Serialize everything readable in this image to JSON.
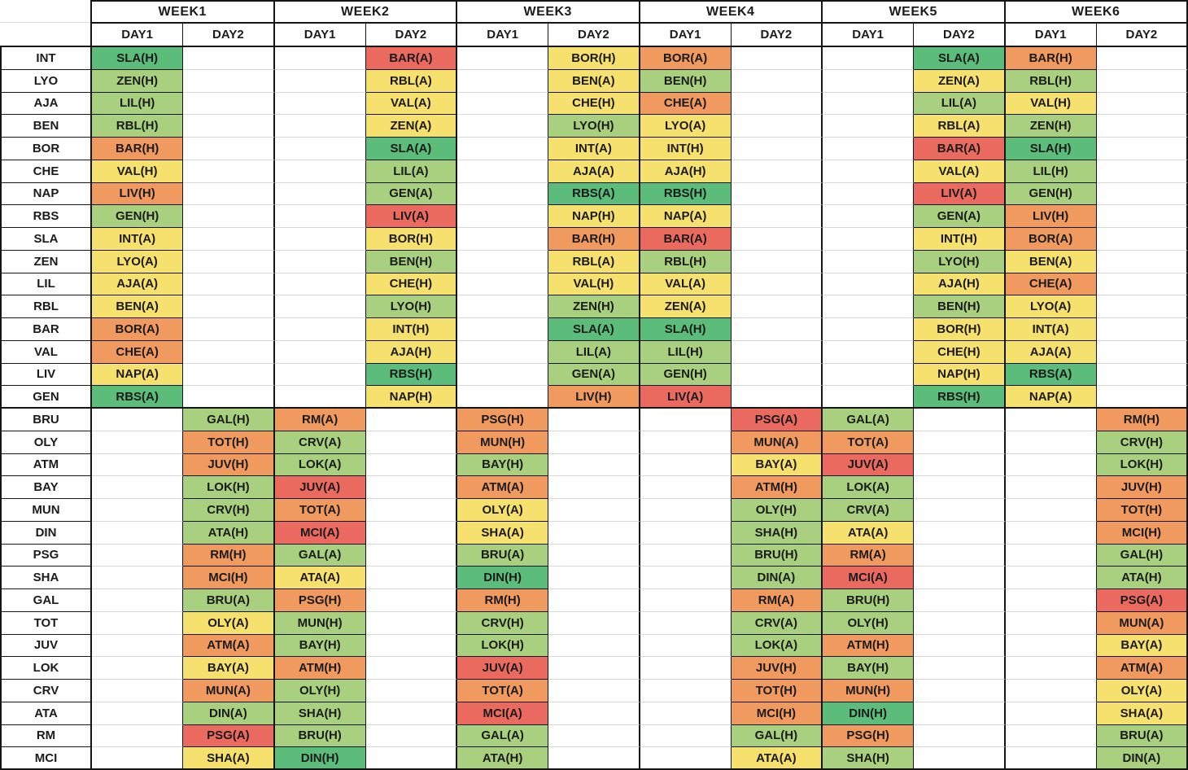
{
  "table_title": "fixture-difficulty-schedule",
  "palette": {
    "border_dark": "#151515",
    "grid_light": "#d8d8d8",
    "text": "#1b1b1b",
    "levels": {
      "g": "#5cbd7b",
      "lg": "#a9d07e",
      "y": "#f7e16e",
      "o": "#f19a60",
      "r": "#eb6a60"
    },
    "level_names": {
      "g": "green",
      "lg": "light-green",
      "y": "yellow",
      "o": "orange",
      "r": "red"
    }
  },
  "header": {
    "corner": "",
    "weeks": [
      {
        "label": "WEEK1",
        "days": [
          "DAY1",
          "DAY2"
        ]
      },
      {
        "label": "WEEK2",
        "days": [
          "DAY1",
          "DAY2"
        ]
      },
      {
        "label": "WEEK3",
        "days": [
          "DAY1",
          "DAY2"
        ]
      },
      {
        "label": "WEEK4",
        "days": [
          "DAY1",
          "DAY2"
        ]
      },
      {
        "label": "WEEK5",
        "days": [
          "DAY1",
          "DAY2"
        ]
      },
      {
        "label": "WEEK6",
        "days": [
          "DAY1",
          "DAY2"
        ]
      }
    ]
  },
  "column_keys": [
    "W1D1",
    "W1D2",
    "W2D1",
    "W2D2",
    "W3D1",
    "W3D2",
    "W4D1",
    "W4D2",
    "W5D1",
    "W5D2",
    "W6D1",
    "W6D2"
  ],
  "rows": [
    {
      "team": "INT",
      "cells": [
        {
          "t": "SLA(H)",
          "d": "g"
        },
        null,
        null,
        {
          "t": "BAR(A)",
          "d": "r"
        },
        null,
        {
          "t": "BOR(H)",
          "d": "y"
        },
        {
          "t": "BOR(A)",
          "d": "o"
        },
        null,
        null,
        {
          "t": "SLA(A)",
          "d": "g"
        },
        {
          "t": "BAR(H)",
          "d": "o"
        },
        null
      ]
    },
    {
      "team": "LYO",
      "cells": [
        {
          "t": "ZEN(H)",
          "d": "lg"
        },
        null,
        null,
        {
          "t": "RBL(A)",
          "d": "y"
        },
        null,
        {
          "t": "BEN(A)",
          "d": "y"
        },
        {
          "t": "BEN(H)",
          "d": "lg"
        },
        null,
        null,
        {
          "t": "ZEN(A)",
          "d": "y"
        },
        {
          "t": "RBL(H)",
          "d": "lg"
        },
        null
      ]
    },
    {
      "team": "AJA",
      "cells": [
        {
          "t": "LIL(H)",
          "d": "lg"
        },
        null,
        null,
        {
          "t": "VAL(A)",
          "d": "y"
        },
        null,
        {
          "t": "CHE(H)",
          "d": "y"
        },
        {
          "t": "CHE(A)",
          "d": "o"
        },
        null,
        null,
        {
          "t": "LIL(A)",
          "d": "lg"
        },
        {
          "t": "VAL(H)",
          "d": "y"
        },
        null
      ]
    },
    {
      "team": "BEN",
      "cells": [
        {
          "t": "RBL(H)",
          "d": "lg"
        },
        null,
        null,
        {
          "t": "ZEN(A)",
          "d": "y"
        },
        null,
        {
          "t": "LYO(H)",
          "d": "lg"
        },
        {
          "t": "LYO(A)",
          "d": "y"
        },
        null,
        null,
        {
          "t": "RBL(A)",
          "d": "y"
        },
        {
          "t": "ZEN(H)",
          "d": "lg"
        },
        null
      ]
    },
    {
      "team": "BOR",
      "cells": [
        {
          "t": "BAR(H)",
          "d": "o"
        },
        null,
        null,
        {
          "t": "SLA(A)",
          "d": "g"
        },
        null,
        {
          "t": "INT(A)",
          "d": "y"
        },
        {
          "t": "INT(H)",
          "d": "y"
        },
        null,
        null,
        {
          "t": "BAR(A)",
          "d": "r"
        },
        {
          "t": "SLA(H)",
          "d": "g"
        },
        null
      ]
    },
    {
      "team": "CHE",
      "cells": [
        {
          "t": "VAL(H)",
          "d": "y"
        },
        null,
        null,
        {
          "t": "LIL(A)",
          "d": "lg"
        },
        null,
        {
          "t": "AJA(A)",
          "d": "y"
        },
        {
          "t": "AJA(H)",
          "d": "y"
        },
        null,
        null,
        {
          "t": "VAL(A)",
          "d": "y"
        },
        {
          "t": "LIL(H)",
          "d": "lg"
        },
        null
      ]
    },
    {
      "team": "NAP",
      "cells": [
        {
          "t": "LIV(H)",
          "d": "o"
        },
        null,
        null,
        {
          "t": "GEN(A)",
          "d": "lg"
        },
        null,
        {
          "t": "RBS(A)",
          "d": "g"
        },
        {
          "t": "RBS(H)",
          "d": "g"
        },
        null,
        null,
        {
          "t": "LIV(A)",
          "d": "r"
        },
        {
          "t": "GEN(H)",
          "d": "lg"
        },
        null
      ]
    },
    {
      "team": "RBS",
      "cells": [
        {
          "t": "GEN(H)",
          "d": "lg"
        },
        null,
        null,
        {
          "t": "LIV(A)",
          "d": "r"
        },
        null,
        {
          "t": "NAP(H)",
          "d": "y"
        },
        {
          "t": "NAP(A)",
          "d": "y"
        },
        null,
        null,
        {
          "t": "GEN(A)",
          "d": "lg"
        },
        {
          "t": "LIV(H)",
          "d": "o"
        },
        null
      ]
    },
    {
      "team": "SLA",
      "cells": [
        {
          "t": "INT(A)",
          "d": "y"
        },
        null,
        null,
        {
          "t": "BOR(H)",
          "d": "y"
        },
        null,
        {
          "t": "BAR(H)",
          "d": "o"
        },
        {
          "t": "BAR(A)",
          "d": "r"
        },
        null,
        null,
        {
          "t": "INT(H)",
          "d": "y"
        },
        {
          "t": "BOR(A)",
          "d": "o"
        },
        null
      ]
    },
    {
      "team": "ZEN",
      "cells": [
        {
          "t": "LYO(A)",
          "d": "y"
        },
        null,
        null,
        {
          "t": "BEN(H)",
          "d": "lg"
        },
        null,
        {
          "t": "RBL(A)",
          "d": "y"
        },
        {
          "t": "RBL(H)",
          "d": "lg"
        },
        null,
        null,
        {
          "t": "LYO(H)",
          "d": "lg"
        },
        {
          "t": "BEN(A)",
          "d": "y"
        },
        null
      ]
    },
    {
      "team": "LIL",
      "cells": [
        {
          "t": "AJA(A)",
          "d": "y"
        },
        null,
        null,
        {
          "t": "CHE(H)",
          "d": "y"
        },
        null,
        {
          "t": "VAL(H)",
          "d": "y"
        },
        {
          "t": "VAL(A)",
          "d": "y"
        },
        null,
        null,
        {
          "t": "AJA(H)",
          "d": "y"
        },
        {
          "t": "CHE(A)",
          "d": "o"
        },
        null
      ]
    },
    {
      "team": "RBL",
      "cells": [
        {
          "t": "BEN(A)",
          "d": "y"
        },
        null,
        null,
        {
          "t": "LYO(H)",
          "d": "lg"
        },
        null,
        {
          "t": "ZEN(H)",
          "d": "lg"
        },
        {
          "t": "ZEN(A)",
          "d": "y"
        },
        null,
        null,
        {
          "t": "BEN(H)",
          "d": "lg"
        },
        {
          "t": "LYO(A)",
          "d": "y"
        },
        null
      ]
    },
    {
      "team": "BAR",
      "cells": [
        {
          "t": "BOR(A)",
          "d": "o"
        },
        null,
        null,
        {
          "t": "INT(H)",
          "d": "y"
        },
        null,
        {
          "t": "SLA(A)",
          "d": "g"
        },
        {
          "t": "SLA(H)",
          "d": "g"
        },
        null,
        null,
        {
          "t": "BOR(H)",
          "d": "y"
        },
        {
          "t": "INT(A)",
          "d": "y"
        },
        null
      ]
    },
    {
      "team": "VAL",
      "cells": [
        {
          "t": "CHE(A)",
          "d": "o"
        },
        null,
        null,
        {
          "t": "AJA(H)",
          "d": "y"
        },
        null,
        {
          "t": "LIL(A)",
          "d": "lg"
        },
        {
          "t": "LIL(H)",
          "d": "lg"
        },
        null,
        null,
        {
          "t": "CHE(H)",
          "d": "y"
        },
        {
          "t": "AJA(A)",
          "d": "y"
        },
        null
      ]
    },
    {
      "team": "LIV",
      "cells": [
        {
          "t": "NAP(A)",
          "d": "y"
        },
        null,
        null,
        {
          "t": "RBS(H)",
          "d": "g"
        },
        null,
        {
          "t": "GEN(A)",
          "d": "lg"
        },
        {
          "t": "GEN(H)",
          "d": "lg"
        },
        null,
        null,
        {
          "t": "NAP(H)",
          "d": "y"
        },
        {
          "t": "RBS(A)",
          "d": "g"
        },
        null
      ]
    },
    {
      "team": "GEN",
      "cells": [
        {
          "t": "RBS(A)",
          "d": "g"
        },
        null,
        null,
        {
          "t": "NAP(H)",
          "d": "y"
        },
        null,
        {
          "t": "LIV(H)",
          "d": "o"
        },
        {
          "t": "LIV(A)",
          "d": "r"
        },
        null,
        null,
        {
          "t": "RBS(H)",
          "d": "g"
        },
        {
          "t": "NAP(A)",
          "d": "y"
        },
        null
      ]
    },
    {
      "team": "BRU",
      "cells": [
        null,
        {
          "t": "GAL(H)",
          "d": "lg"
        },
        {
          "t": "RM(A)",
          "d": "o"
        },
        null,
        {
          "t": "PSG(H)",
          "d": "o"
        },
        null,
        null,
        {
          "t": "PSG(A)",
          "d": "r"
        },
        {
          "t": "GAL(A)",
          "d": "lg"
        },
        null,
        null,
        {
          "t": "RM(H)",
          "d": "o"
        }
      ]
    },
    {
      "team": "OLY",
      "cells": [
        null,
        {
          "t": "TOT(H)",
          "d": "o"
        },
        {
          "t": "CRV(A)",
          "d": "lg"
        },
        null,
        {
          "t": "MUN(H)",
          "d": "o"
        },
        null,
        null,
        {
          "t": "MUN(A)",
          "d": "o"
        },
        {
          "t": "TOT(A)",
          "d": "o"
        },
        null,
        null,
        {
          "t": "CRV(H)",
          "d": "lg"
        }
      ]
    },
    {
      "team": "ATM",
      "cells": [
        null,
        {
          "t": "JUV(H)",
          "d": "o"
        },
        {
          "t": "LOK(A)",
          "d": "lg"
        },
        null,
        {
          "t": "BAY(H)",
          "d": "lg"
        },
        null,
        null,
        {
          "t": "BAY(A)",
          "d": "y"
        },
        {
          "t": "JUV(A)",
          "d": "r"
        },
        null,
        null,
        {
          "t": "LOK(H)",
          "d": "lg"
        }
      ]
    },
    {
      "team": "BAY",
      "cells": [
        null,
        {
          "t": "LOK(H)",
          "d": "lg"
        },
        {
          "t": "JUV(A)",
          "d": "r"
        },
        null,
        {
          "t": "ATM(A)",
          "d": "o"
        },
        null,
        null,
        {
          "t": "ATM(H)",
          "d": "o"
        },
        {
          "t": "LOK(A)",
          "d": "lg"
        },
        null,
        null,
        {
          "t": "JUV(H)",
          "d": "o"
        }
      ]
    },
    {
      "team": "MUN",
      "cells": [
        null,
        {
          "t": "CRV(H)",
          "d": "lg"
        },
        {
          "t": "TOT(A)",
          "d": "o"
        },
        null,
        {
          "t": "OLY(A)",
          "d": "y"
        },
        null,
        null,
        {
          "t": "OLY(H)",
          "d": "lg"
        },
        {
          "t": "CRV(A)",
          "d": "lg"
        },
        null,
        null,
        {
          "t": "TOT(H)",
          "d": "o"
        }
      ]
    },
    {
      "team": "DIN",
      "cells": [
        null,
        {
          "t": "ATA(H)",
          "d": "lg"
        },
        {
          "t": "MCI(A)",
          "d": "r"
        },
        null,
        {
          "t": "SHA(A)",
          "d": "y"
        },
        null,
        null,
        {
          "t": "SHA(H)",
          "d": "lg"
        },
        {
          "t": "ATA(A)",
          "d": "y"
        },
        null,
        null,
        {
          "t": "MCI(H)",
          "d": "o"
        }
      ]
    },
    {
      "team": "PSG",
      "cells": [
        null,
        {
          "t": "RM(H)",
          "d": "o"
        },
        {
          "t": "GAL(A)",
          "d": "lg"
        },
        null,
        {
          "t": "BRU(A)",
          "d": "lg"
        },
        null,
        null,
        {
          "t": "BRU(H)",
          "d": "lg"
        },
        {
          "t": "RM(A)",
          "d": "o"
        },
        null,
        null,
        {
          "t": "GAL(H)",
          "d": "lg"
        }
      ]
    },
    {
      "team": "SHA",
      "cells": [
        null,
        {
          "t": "MCI(H)",
          "d": "o"
        },
        {
          "t": "ATA(A)",
          "d": "y"
        },
        null,
        {
          "t": "DIN(H)",
          "d": "g"
        },
        null,
        null,
        {
          "t": "DIN(A)",
          "d": "lg"
        },
        {
          "t": "MCI(A)",
          "d": "r"
        },
        null,
        null,
        {
          "t": "ATA(H)",
          "d": "lg"
        }
      ]
    },
    {
      "team": "GAL",
      "cells": [
        null,
        {
          "t": "BRU(A)",
          "d": "lg"
        },
        {
          "t": "PSG(H)",
          "d": "o"
        },
        null,
        {
          "t": "RM(H)",
          "d": "o"
        },
        null,
        null,
        {
          "t": "RM(A)",
          "d": "o"
        },
        {
          "t": "BRU(H)",
          "d": "lg"
        },
        null,
        null,
        {
          "t": "PSG(A)",
          "d": "r"
        }
      ]
    },
    {
      "team": "TOT",
      "cells": [
        null,
        {
          "t": "OLY(A)",
          "d": "y"
        },
        {
          "t": "MUN(H)",
          "d": "lg"
        },
        null,
        {
          "t": "CRV(H)",
          "d": "lg"
        },
        null,
        null,
        {
          "t": "CRV(A)",
          "d": "lg"
        },
        {
          "t": "OLY(H)",
          "d": "lg"
        },
        null,
        null,
        {
          "t": "MUN(A)",
          "d": "o"
        }
      ]
    },
    {
      "team": "JUV",
      "cells": [
        null,
        {
          "t": "ATM(A)",
          "d": "o"
        },
        {
          "t": "BAY(H)",
          "d": "lg"
        },
        null,
        {
          "t": "LOK(H)",
          "d": "lg"
        },
        null,
        null,
        {
          "t": "LOK(A)",
          "d": "lg"
        },
        {
          "t": "ATM(H)",
          "d": "o"
        },
        null,
        null,
        {
          "t": "BAY(A)",
          "d": "y"
        }
      ]
    },
    {
      "team": "LOK",
      "cells": [
        null,
        {
          "t": "BAY(A)",
          "d": "y"
        },
        {
          "t": "ATM(H)",
          "d": "o"
        },
        null,
        {
          "t": "JUV(A)",
          "d": "r"
        },
        null,
        null,
        {
          "t": "JUV(H)",
          "d": "o"
        },
        {
          "t": "BAY(H)",
          "d": "lg"
        },
        null,
        null,
        {
          "t": "ATM(A)",
          "d": "o"
        }
      ]
    },
    {
      "team": "CRV",
      "cells": [
        null,
        {
          "t": "MUN(A)",
          "d": "o"
        },
        {
          "t": "OLY(H)",
          "d": "lg"
        },
        null,
        {
          "t": "TOT(A)",
          "d": "o"
        },
        null,
        null,
        {
          "t": "TOT(H)",
          "d": "o"
        },
        {
          "t": "MUN(H)",
          "d": "o"
        },
        null,
        null,
        {
          "t": "OLY(A)",
          "d": "y"
        }
      ]
    },
    {
      "team": "ATA",
      "cells": [
        null,
        {
          "t": "DIN(A)",
          "d": "lg"
        },
        {
          "t": "SHA(H)",
          "d": "lg"
        },
        null,
        {
          "t": "MCI(A)",
          "d": "r"
        },
        null,
        null,
        {
          "t": "MCI(H)",
          "d": "o"
        },
        {
          "t": "DIN(H)",
          "d": "g"
        },
        null,
        null,
        {
          "t": "SHA(A)",
          "d": "y"
        }
      ]
    },
    {
      "team": "RM",
      "cells": [
        null,
        {
          "t": "PSG(A)",
          "d": "r"
        },
        {
          "t": "BRU(H)",
          "d": "lg"
        },
        null,
        {
          "t": "GAL(A)",
          "d": "lg"
        },
        null,
        null,
        {
          "t": "GAL(H)",
          "d": "lg"
        },
        {
          "t": "PSG(H)",
          "d": "o"
        },
        null,
        null,
        {
          "t": "BRU(A)",
          "d": "lg"
        }
      ]
    },
    {
      "team": "MCI",
      "cells": [
        null,
        {
          "t": "SHA(A)",
          "d": "y"
        },
        {
          "t": "DIN(H)",
          "d": "g"
        },
        null,
        {
          "t": "ATA(H)",
          "d": "lg"
        },
        null,
        null,
        {
          "t": "ATA(A)",
          "d": "y"
        },
        {
          "t": "SHA(H)",
          "d": "lg"
        },
        null,
        null,
        {
          "t": "DIN(A)",
          "d": "lg"
        }
      ]
    }
  ]
}
